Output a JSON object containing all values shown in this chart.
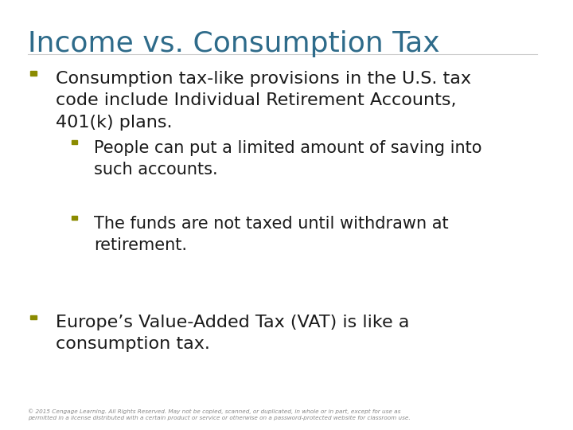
{
  "title": "Income vs. Consumption Tax",
  "title_color": "#2E6B8A",
  "background_color": "#FFFFFF",
  "bullet_color_main": "#8B8B00",
  "bullet_color_sub": "#8B8B00",
  "text_color": "#1A1A1A",
  "footer_text": "© 2015 Cengage Learning. All Rights Reserved. May not be copied, scanned, or duplicated, in whole or in part, except for use as\npermitted in a license distributed with a certain product or service or otherwise on a password-protected website for classroom use.",
  "footer_color": "#888888",
  "bullets": [
    {
      "level": 1,
      "text": "Consumption tax-like provisions in the U.S. tax\ncode include Individual Retirement Accounts,\n401(k) plans.",
      "sub_bullets": [
        "People can put a limited amount of saving into\nsuch accounts.",
        "The funds are not taxed until withdrawn at\nretirement."
      ]
    },
    {
      "level": 1,
      "text": "Europe’s Value-Added Tax (VAT) is like a\nconsumption tax.",
      "sub_bullets": []
    }
  ]
}
